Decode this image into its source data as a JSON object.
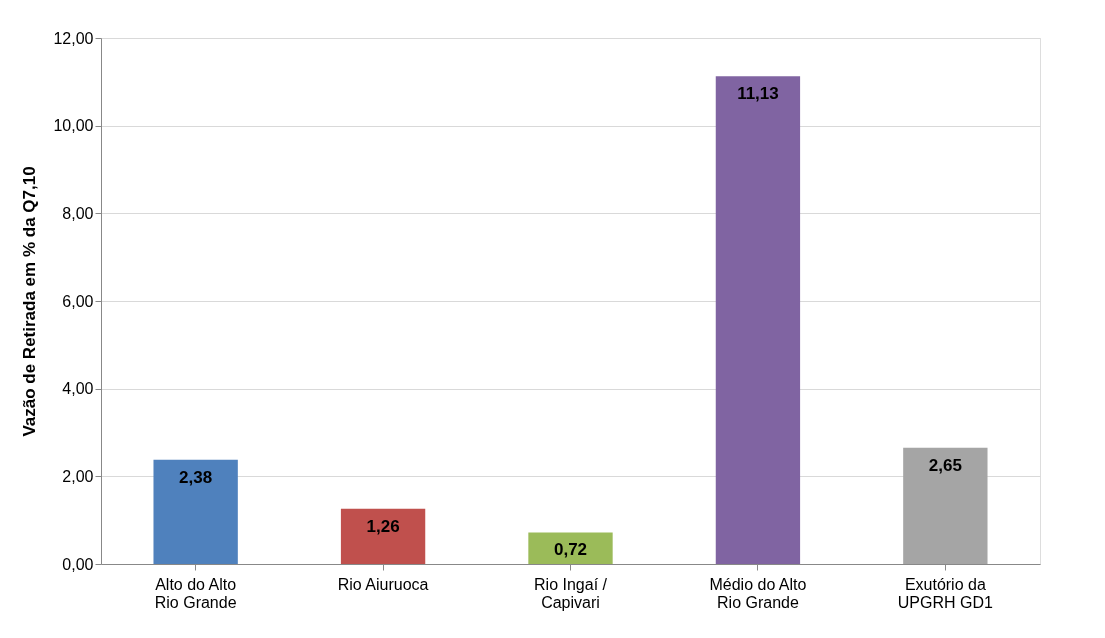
{
  "chart_data": {
    "type": "bar",
    "ylabel": "Vazão de Retirada em % da Q7,10",
    "categories": [
      "Alto do Alto Rio Grande",
      "Rio Aiuruoca",
      "Rio Ingaí / Capivari",
      "Médio do Alto Rio Grande",
      "Exutório da UPGRH GD1"
    ],
    "values": [
      2.38,
      1.26,
      0.72,
      11.13,
      2.65
    ],
    "colors": [
      "#4f81bd",
      "#c0504d",
      "#9bbb59",
      "#8064a2",
      "#a5a5a5"
    ],
    "value_labels": [
      "2,38",
      "1,26",
      "0,72",
      "11,13",
      "2,65"
    ],
    "ylim": [
      0,
      12
    ],
    "yticks": [
      {
        "value": 0,
        "label": "0,00"
      },
      {
        "value": 2,
        "label": "2,00"
      },
      {
        "value": 4,
        "label": "4,00"
      },
      {
        "value": 6,
        "label": "6,00"
      },
      {
        "value": 8,
        "label": "8,00"
      },
      {
        "value": 10,
        "label": "10,00"
      },
      {
        "value": 12,
        "label": "12,00"
      }
    ],
    "grid": "y"
  }
}
